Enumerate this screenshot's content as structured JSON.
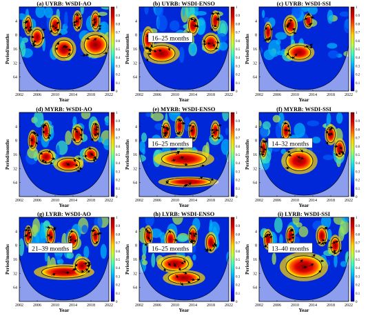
{
  "figure": {
    "panels": [
      {
        "id": "a",
        "title": "(a) UYRB: WSDI-AO",
        "ylabel": "Period/months",
        "xlabel": "Year",
        "callout": "",
        "blobs": [
          [
            2006,
            9,
            1.2,
            0.4
          ],
          [
            2010,
            5,
            1,
            0.4
          ],
          [
            2015,
            4,
            0.8,
            0.4
          ],
          [
            2019,
            4,
            0.8,
            0.4
          ],
          [
            2012,
            16,
            2,
            0.45
          ],
          [
            2019,
            13,
            2.5,
            0.5
          ],
          [
            2004,
            5,
            0.7,
            0.4
          ]
        ]
      },
      {
        "id": "b",
        "title": "(b) UYRB: WSDI-ENSO",
        "ylabel": "Period/months",
        "xlabel": "Year",
        "callout": "16–25 months",
        "blobs": [
          [
            2007,
            20,
            3,
            0.4
          ],
          [
            2004,
            10,
            1,
            0.5
          ],
          [
            2014,
            5,
            1,
            0.4
          ],
          [
            2019,
            4,
            0.8,
            0.4
          ],
          [
            2018,
            12,
            1.5,
            0.4
          ]
        ]
      },
      {
        "id": "c",
        "title": "(c) UYRB: WSDI-SSI",
        "ylabel": "Period/months",
        "xlabel": "Year",
        "callout": "",
        "blobs": [
          [
            2009,
            5,
            1.2,
            0.4
          ],
          [
            2013,
            4,
            0.8,
            0.3
          ],
          [
            2011,
            19,
            2.5,
            0.35
          ],
          [
            2004,
            7,
            0.7,
            0.4
          ]
        ]
      },
      {
        "id": "d",
        "title": "(d) MYRB: WSDI-AO",
        "ylabel": "Period/months",
        "xlabel": "Year",
        "callout": "",
        "blobs": [
          [
            2005,
            8,
            0.8,
            0.4
          ],
          [
            2008,
            5,
            0.7,
            0.4
          ],
          [
            2015,
            6,
            1,
            0.4
          ],
          [
            2019,
            5,
            0.8,
            0.4
          ],
          [
            2013,
            26,
            2.5,
            0.3
          ],
          [
            2008,
            18,
            1.5,
            0.3
          ],
          [
            2018,
            16,
            1.3,
            0.3
          ]
        ]
      },
      {
        "id": "e",
        "title": "(e) MYRB: WSDI-ENSO",
        "ylabel": "Period/months",
        "xlabel": "Year",
        "callout": "16–25 months",
        "blobs": [
          [
            2012,
            20,
            5,
            0.35
          ],
          [
            2008,
            5,
            0.8,
            0.4
          ],
          [
            2011,
            4,
            0.8,
            0.4
          ],
          [
            2014,
            5,
            0.8,
            0.4
          ],
          [
            2019,
            5,
            0.8,
            0.4
          ],
          [
            2013,
            62,
            5,
            0.2
          ]
        ]
      },
      {
        "id": "f",
        "title": "(f) MYRB: WSDI-SSI",
        "ylabel": "Period/months",
        "xlabel": "Year",
        "callout": "14–32 months",
        "blobs": [
          [
            2011,
            22,
            3,
            0.5
          ],
          [
            2003,
            12,
            0.6,
            0.4
          ],
          [
            2008,
            5,
            0.8,
            0.4
          ],
          [
            2018,
            6,
            1,
            0.4
          ],
          [
            2020,
            12,
            1,
            0.4
          ]
        ]
      },
      {
        "id": "g",
        "title": "(g) LYRB: WSDI-AO",
        "ylabel": "Period/months",
        "xlabel": "Year",
        "callout": "21–39 months",
        "blobs": [
          [
            2012,
            30,
            5,
            0.3
          ],
          [
            2016,
            22,
            1.5,
            0.35
          ],
          [
            2004,
            5,
            0.7,
            0.4
          ],
          [
            2009,
            5,
            0.8,
            0.4
          ],
          [
            2014,
            6,
            1,
            0.4
          ],
          [
            2019,
            5,
            0.8,
            0.4
          ]
        ]
      },
      {
        "id": "h",
        "title": "(h) LYRB: WSDI-ENSO",
        "ylabel": "Period/months",
        "xlabel": "Year",
        "callout": "16–25 months",
        "blobs": [
          [
            2010,
            20,
            3,
            0.35
          ],
          [
            2012,
            40,
            3.5,
            0.3
          ],
          [
            2004,
            5,
            0.8,
            0.4
          ],
          [
            2009,
            6,
            1,
            0.4
          ],
          [
            2014,
            5,
            0.8,
            0.4
          ],
          [
            2018,
            7,
            1,
            0.4
          ]
        ]
      },
      {
        "id": "i",
        "title": "(i) LYRB: WSDI-SSI",
        "ylabel": "Period/months",
        "xlabel": "Year",
        "callout": "13–40 months",
        "blobs": [
          [
            2012,
            23,
            4,
            0.55
          ],
          [
            2004,
            6,
            0.8,
            0.4
          ],
          [
            2009,
            5,
            0.8,
            0.4
          ],
          [
            2016,
            5,
            1,
            0.4
          ],
          [
            2019,
            8,
            1,
            0.4
          ]
        ]
      }
    ],
    "colorbar": {
      "ticks": [
        "0",
        "0.1",
        "0.2",
        "0.3",
        "0.4",
        "0.5",
        "0.6",
        "0.7",
        "0.8",
        "0.9",
        "1"
      ],
      "colors": [
        "#00008f",
        "#0000ff",
        "#0064ff",
        "#00c8ff",
        "#40ffbf",
        "#bfff40",
        "#ffd700",
        "#ff6400",
        "#e00000",
        "#8b0000"
      ]
    },
    "arrow_color": "#000000",
    "coi_color": "#ffffff"
  },
  "chart_data": {
    "type": "heatmap",
    "subtype": "wavelet coherence",
    "x_ticks": [
      "2002",
      "2006",
      "2010",
      "2014",
      "2018",
      "2022"
    ],
    "xlim": [
      2002,
      2022
    ],
    "y_ticks": [
      "4",
      "8",
      "16",
      "32",
      "64"
    ],
    "ylim": [
      2,
      128
    ],
    "y_scale": "log2",
    "colorbar_range": [
      0,
      1
    ],
    "grid": false
  }
}
